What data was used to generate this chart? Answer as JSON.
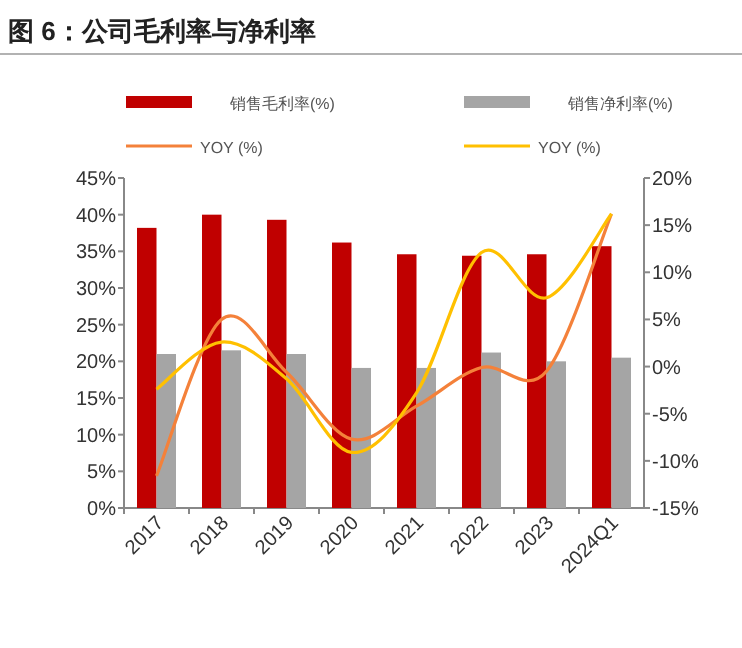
{
  "chart_data": {
    "type": "bar",
    "title": "图 6：公司毛利率与净利率",
    "categories": [
      "2017",
      "2018",
      "2019",
      "2020",
      "2021",
      "2022",
      "2023",
      "2024Q1"
    ],
    "series": [
      {
        "name": "销售毛利率(%)",
        "color": "#c00000",
        "values": [
          38.2,
          40.0,
          39.3,
          36.2,
          34.6,
          34.4,
          34.6,
          35.7
        ]
      },
      {
        "name": "销售净利率(%)",
        "color": "#a5a5a5",
        "values": [
          21.0,
          21.5,
          21.0,
          19.1,
          19.1,
          21.2,
          20.0,
          20.5
        ]
      },
      {
        "name": "YOY (%)",
        "type": "line",
        "axis": "y2",
        "color": "#f4813a",
        "values": [
          -11.6,
          5.0,
          -0.6,
          -7.7,
          -4.2,
          -0.1,
          -0.5,
          16.2
        ]
      },
      {
        "name": "YOY (%)",
        "type": "line",
        "axis": "y2",
        "color": "#ffc000",
        "values": [
          -2.4,
          2.6,
          -1.3,
          -9.1,
          -2.8,
          12.1,
          7.3,
          16.2
        ]
      }
    ],
    "ylim": [
      0,
      45
    ],
    "yticks": [
      {
        "value": 0,
        "label": "0%"
      },
      {
        "value": 5,
        "label": "5%"
      },
      {
        "value": 10,
        "label": "10%"
      },
      {
        "value": 15,
        "label": "15%"
      },
      {
        "value": 20,
        "label": "20%"
      },
      {
        "value": 25,
        "label": "25%"
      },
      {
        "value": 30,
        "label": "30%"
      },
      {
        "value": 35,
        "label": "35%"
      },
      {
        "value": 40,
        "label": "40%"
      },
      {
        "value": 45,
        "label": "45%"
      }
    ],
    "y2lim": [
      -15,
      20
    ],
    "y2ticks": [
      {
        "value": -15,
        "label": "-15%"
      },
      {
        "value": -10,
        "label": "-10%"
      },
      {
        "value": -5,
        "label": "-5%"
      },
      {
        "value": 0,
        "label": "0%"
      },
      {
        "value": 5,
        "label": "5%"
      },
      {
        "value": 10,
        "label": "10%"
      },
      {
        "value": 15,
        "label": "15%"
      },
      {
        "value": 20,
        "label": "20%"
      }
    ],
    "legend": "top",
    "grid": false
  }
}
